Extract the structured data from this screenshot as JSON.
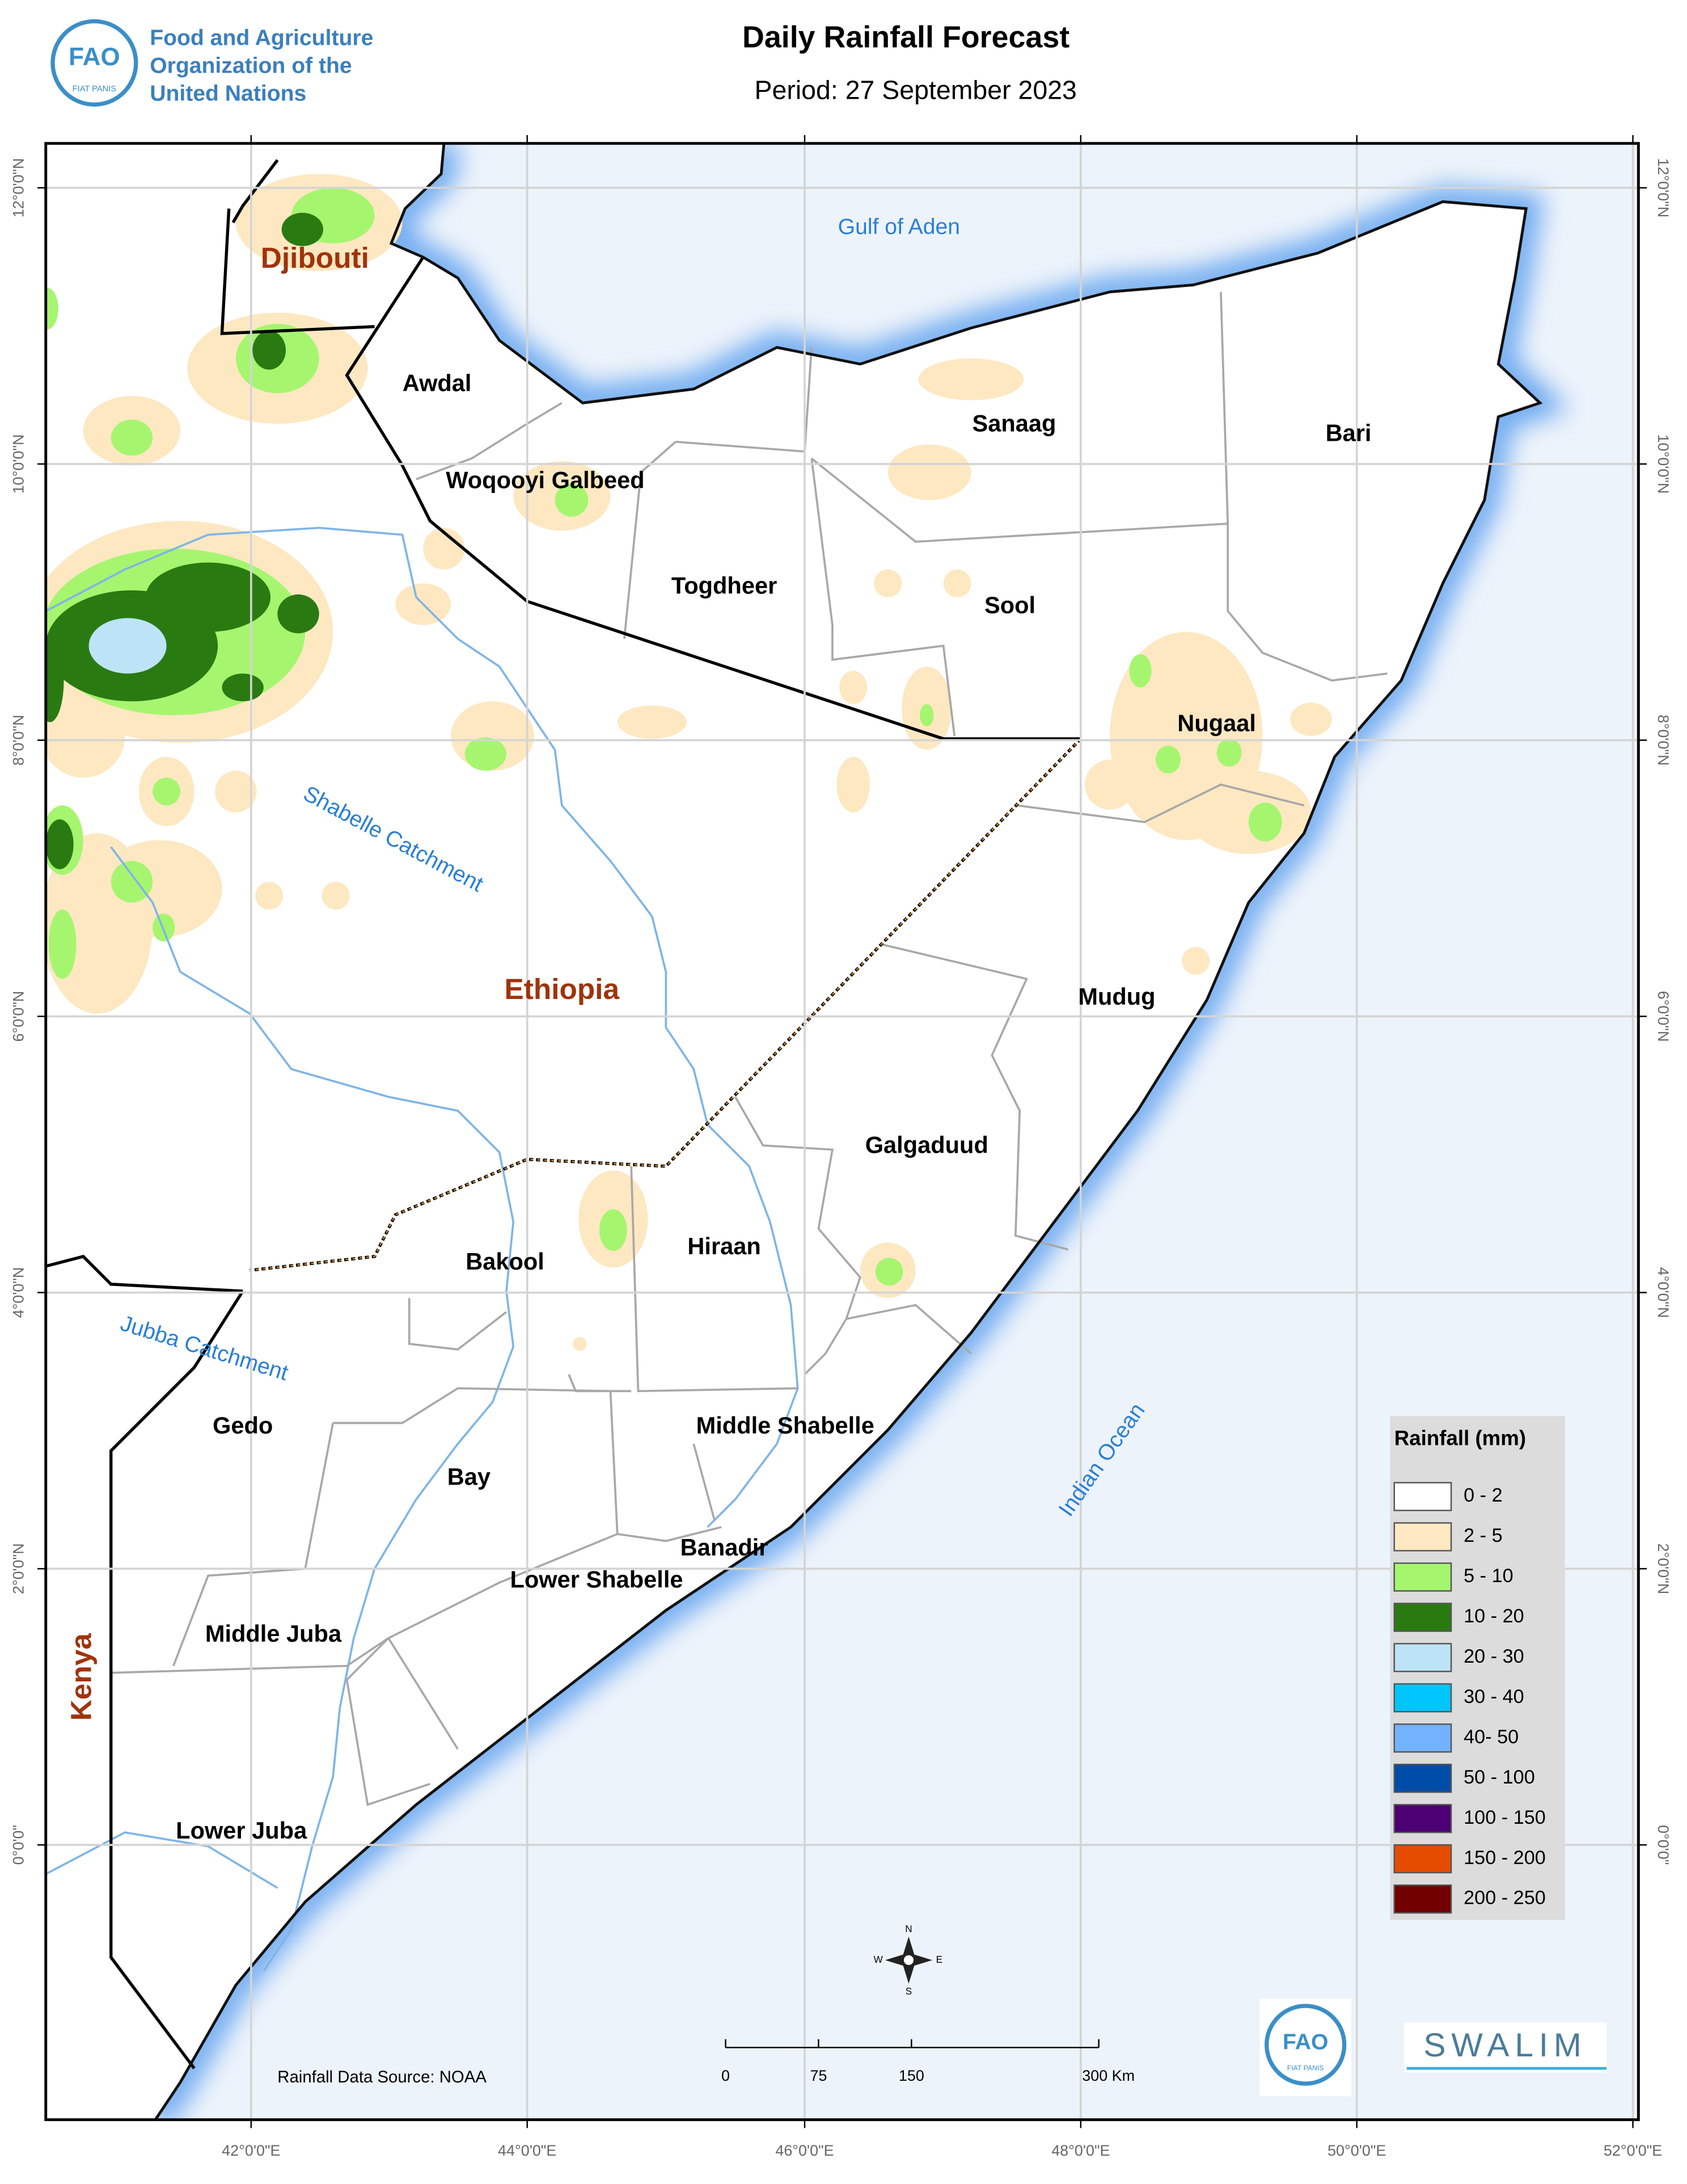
{
  "header": {
    "org_name": [
      "Food and Agriculture",
      "Organization of the",
      "United Nations"
    ],
    "title": "Daily Rainfall Forecast",
    "period": "Period: 27 September  2023",
    "logo_letters": "FAO",
    "logo_motto": "FIAT PANIS"
  },
  "map": {
    "countries": [
      "Djibouti",
      "Ethiopia",
      "Kenya"
    ],
    "regions": [
      "Awdal",
      "Woqooyi Galbeed",
      "Togdheer",
      "Sanaag",
      "Bari",
      "Sool",
      "Nugaal",
      "Mudug",
      "Galgaduud",
      "Hiraan",
      "Bakool",
      "Gedo",
      "Bay",
      "Middle Shabelle",
      "Banadir",
      "Lower Shabelle",
      "Middle Juba",
      "Lower Juba"
    ],
    "water": [
      "Gulf of Aden",
      "Shabelle Catchment",
      "Jubba Catchment",
      "Indian Ocean"
    ]
  },
  "graticule": {
    "lon_labels": [
      "42°0'0\"E",
      "44°0'0\"E",
      "46°0'0\"E",
      "48°0'0\"E",
      "50°0'0\"E",
      "52°0'0\"E"
    ],
    "lat_labels": [
      "12°0'0\"N",
      "10°0'0\"N",
      "8°0'0\"N",
      "6°0'0\"N",
      "4°0'0\"N",
      "2°0'0\"N",
      "0°0'0\""
    ]
  },
  "legend": {
    "title": "Rainfall (mm)",
    "classes": [
      {
        "label": "0 - 2",
        "color": "#ffffff"
      },
      {
        "label": "2 - 5",
        "color": "#fde8c2"
      },
      {
        "label": "5 - 10",
        "color": "#a6f56f"
      },
      {
        "label": "10 - 20",
        "color": "#2a7a12"
      },
      {
        "label": "20 - 30",
        "color": "#bde3f7"
      },
      {
        "label": "30 - 40",
        "color": "#00c5ff"
      },
      {
        "label": "40- 50",
        "color": "#73b2ff"
      },
      {
        "label": "50 - 100",
        "color": "#004da8"
      },
      {
        "label": "100 - 150",
        "color": "#4c0073"
      },
      {
        "label": "150 - 200",
        "color": "#e64c00"
      },
      {
        "label": "200 - 250",
        "color": "#730000"
      }
    ]
  },
  "scale_bar": {
    "labels": [
      "0",
      "75",
      "150",
      "300 Km"
    ]
  },
  "source": "Rainfall Data Source: NOAA",
  "compass": [
    "N",
    "E",
    "S",
    "W"
  ],
  "partner_logo": "SWALIM"
}
